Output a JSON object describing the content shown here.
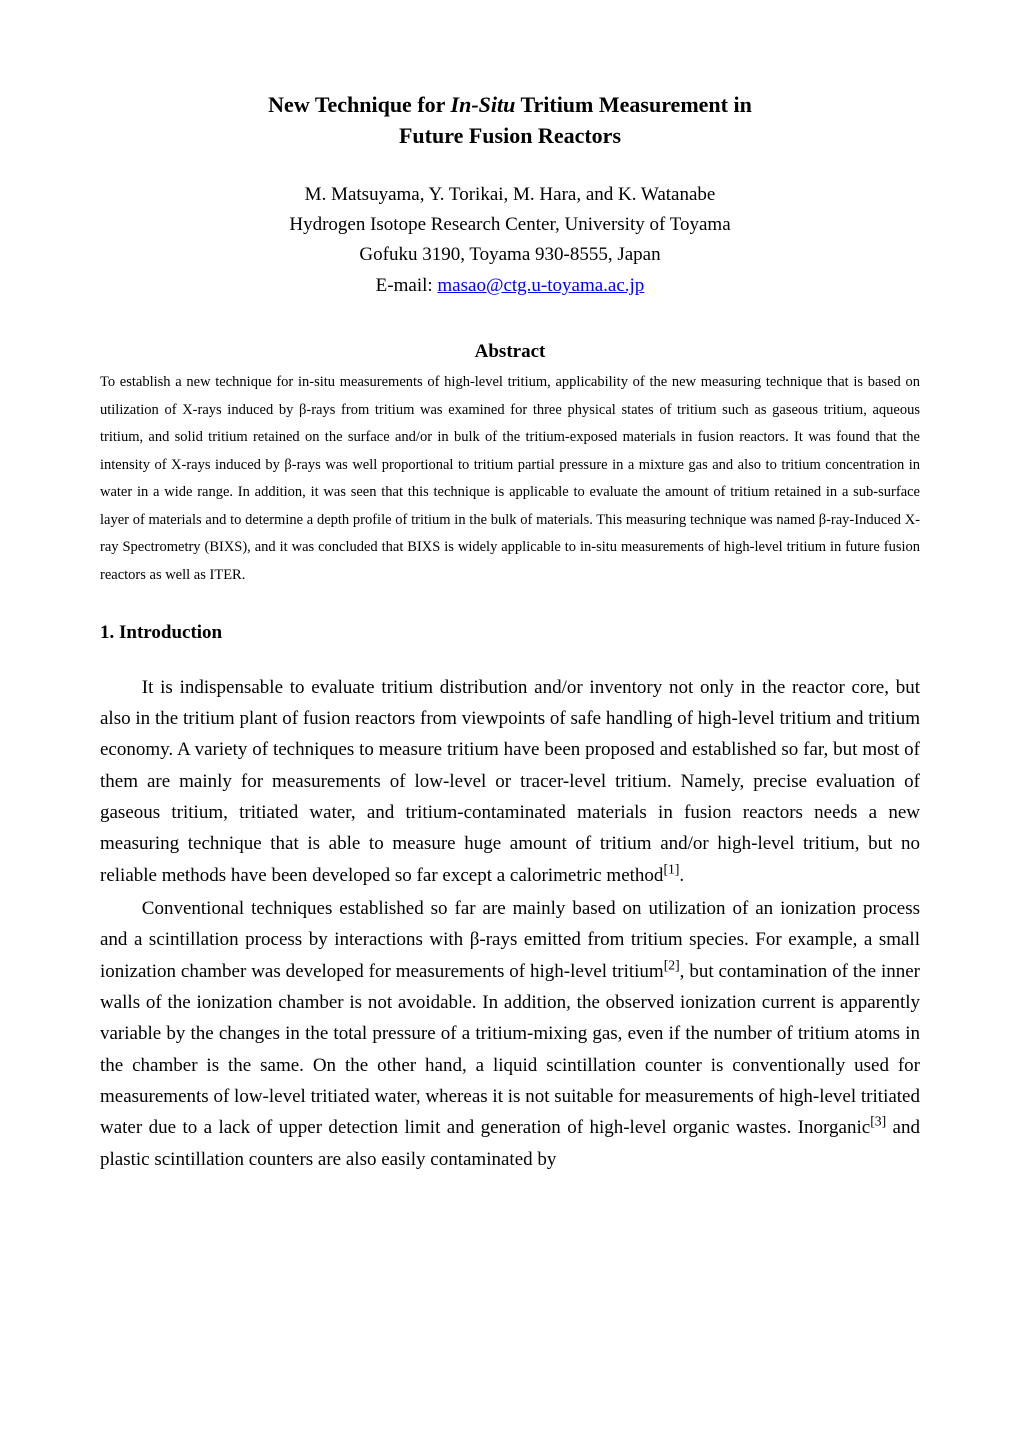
{
  "title": {
    "line1_prefix": "New Technique for ",
    "line1_italic": "In-Situ",
    "line1_suffix": " Tritium Measurement in",
    "line2": "Future Fusion Reactors"
  },
  "authors": {
    "names": "M. Matsuyama, Y. Torikai, M. Hara, and K. Watanabe",
    "affiliation": "Hydrogen Isotope Research Center, University of Toyama",
    "address": "Gofuku 3190, Toyama 930-8555, Japan",
    "email_label": "E-mail: ",
    "email": "masao@ctg.u-toyama.ac.jp"
  },
  "abstract": {
    "heading": "Abstract",
    "body": "To establish a new technique for in-situ measurements of high-level tritium, applicability of the new measuring technique that is based on utilization of X-rays induced by β-rays from tritium was examined for three physical states of tritium such as gaseous tritium, aqueous tritium, and solid tritium retained on the surface and/or in bulk of the tritium-exposed materials in fusion reactors. It was found that the intensity of X-rays induced by β-rays was well proportional to tritium partial pressure in a mixture gas and also to tritium concentration in water in a wide range. In addition, it was seen that this technique is applicable to evaluate the amount of tritium retained in a sub-surface layer of materials and to determine a depth profile of tritium in the bulk of materials. This measuring technique was named β-ray-Induced X-ray Spectrometry (BIXS), and it was concluded that BIXS is widely applicable to in-situ measurements of high-level tritium in future fusion reactors as well as ITER."
  },
  "section1": {
    "heading": "1. Introduction",
    "para1_pre": "It is indispensable to evaluate tritium distribution and/or inventory not only in the reactor core, but also in the tritium plant of fusion reactors from viewpoints of safe handling of high-level tritium and tritium economy. A variety of techniques to measure tritium have been proposed and established so far, but most of them are mainly for measurements of low-level or tracer-level tritium. Namely, precise evaluation of gaseous tritium, tritiated water, and tritium-contaminated materials in fusion reactors needs a new measuring technique that is able to measure huge amount of tritium and/or high-level tritium, but no reliable methods have been developed so far except a calorimetric method",
    "para1_ref1": "[1]",
    "para1_post": ".",
    "para2_a": "Conventional techniques established so far are mainly based on utilization of an ionization process and a scintillation process by interactions with β-rays emitted from tritium species. For example, a small ionization chamber was developed for measurements of high-level tritium",
    "para2_ref2": "[2]",
    "para2_b": ", but contamination of the inner walls of the ionization chamber is not avoidable. In addition, the observed ionization current is apparently variable by the changes in the total pressure of a tritium-mixing gas, even if the number of tritium atoms in the chamber is the same. On the other hand, a liquid scintillation counter is conventionally used for measurements of low-level tritiated water, whereas it is not suitable for measurements of high-level tritiated water due to a lack of upper detection limit and generation of high-level organic wastes. Inorganic",
    "para2_ref3": "[3]",
    "para2_c": " and plastic scintillation counters are also easily contaminated by"
  },
  "colors": {
    "text": "#000000",
    "background": "#ffffff",
    "link": "#0000ff"
  },
  "typography": {
    "title_fontsize": 22,
    "author_fontsize": 19,
    "abstract_heading_fontsize": 19,
    "abstract_body_fontsize": 14.5,
    "section_heading_fontsize": 19,
    "body_fontsize": 19,
    "font_family": "Times New Roman"
  }
}
